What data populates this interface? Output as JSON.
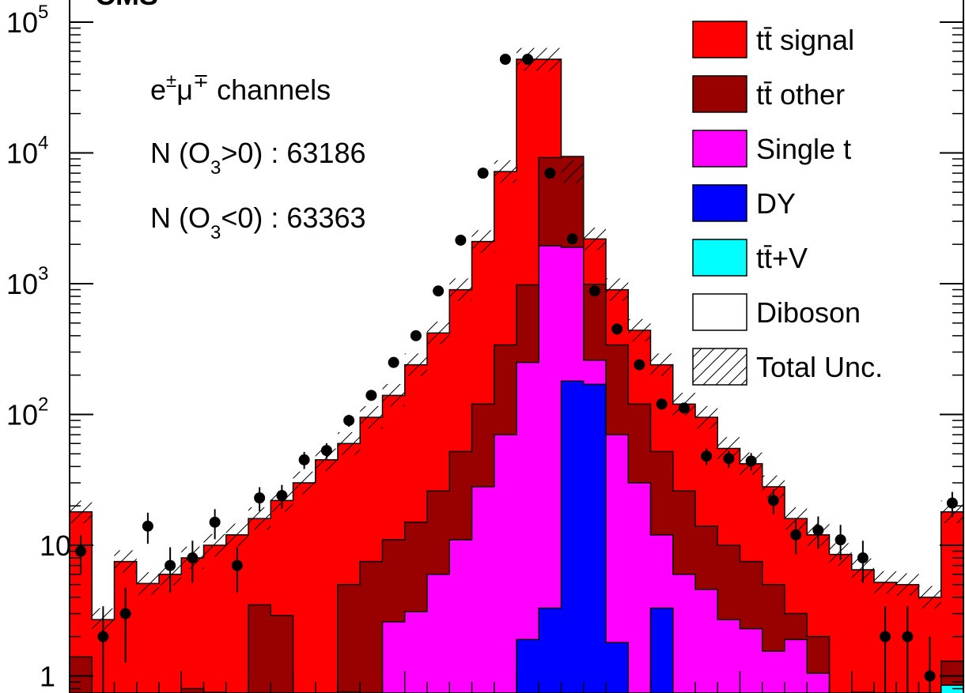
{
  "chart_data": {
    "type": "bar",
    "stacked": true,
    "yscale": "log",
    "ylim": [
      0.6,
      100000
    ],
    "n_bins": 40,
    "title": "CMS",
    "yticks": [
      {
        "value": 1,
        "base": "1",
        "exp": ""
      },
      {
        "value": 10,
        "base": "10",
        "exp": ""
      },
      {
        "value": 100,
        "base": "10",
        "exp": "2"
      },
      {
        "value": 1000,
        "base": "10",
        "exp": "3"
      },
      {
        "value": 10000,
        "base": "10",
        "exp": "4"
      },
      {
        "value": 100000,
        "base": "10",
        "exp": "5"
      }
    ],
    "annotations": {
      "channel": {
        "main": "e",
        "sup1": "±",
        "mid": "μ",
        "sup2": "∓",
        "tail": " channels"
      },
      "npos": {
        "prefix": "N (O",
        "sub": "3",
        "suffix": ">0) : 63186"
      },
      "nneg": {
        "prefix": "N (O",
        "sub": "3",
        "suffix": "<0) : 63363"
      }
    },
    "legend": {
      "position": "top-right",
      "entries": [
        {
          "label": "tt̄ signal",
          "color": "#ff0000",
          "hatch": false
        },
        {
          "label": "tt̄ other",
          "color": "#990000",
          "hatch": false
        },
        {
          "label": "Single t",
          "color": "#ff00ff",
          "hatch": false
        },
        {
          "label": "DY",
          "color": "#0000ff",
          "hatch": false
        },
        {
          "label": "tt̄+V",
          "color": "#00ffff",
          "hatch": false
        },
        {
          "label": "Diboson",
          "color": "#ffffff",
          "hatch": false
        },
        {
          "label": "Total Unc.",
          "color": "#ffffff",
          "hatch": true
        }
      ]
    },
    "series": [
      {
        "name": "tt̄ signal",
        "color": "#ff0000",
        "cumulative_values": [
          18,
          2.7,
          7.5,
          5.1,
          6,
          8,
          10,
          12,
          16,
          22,
          30,
          45,
          60,
          95,
          140,
          240,
          420,
          900,
          2100,
          7200,
          52000,
          52000,
          7200,
          2200,
          900,
          440,
          240,
          120,
          95,
          55,
          42,
          28,
          16,
          12,
          8.5,
          6.5,
          5.2,
          5,
          4,
          18
        ]
      },
      {
        "name": "tt̄ other",
        "color": "#990000",
        "cumulative_values": [
          1.4,
          0.55,
          0.55,
          0.55,
          0.6,
          0.8,
          0.75,
          0.6,
          3.5,
          2.9,
          0.6,
          0.6,
          5,
          7.5,
          11,
          15,
          26,
          52,
          120,
          340,
          980,
          9200,
          9400,
          990,
          340,
          120,
          52,
          26,
          14,
          10,
          7.5,
          5,
          3,
          2,
          0.55,
          0.75,
          0.7,
          0.55,
          0.55,
          1.3
        ]
      },
      {
        "name": "Single t",
        "color": "#ff00ff",
        "cumulative_values": [
          0,
          0,
          0,
          0,
          0,
          0,
          0,
          0,
          0,
          0,
          0,
          0,
          0,
          0,
          2.6,
          3.1,
          6,
          11,
          28,
          70,
          250,
          1950,
          1900,
          260,
          70,
          30,
          12,
          6,
          4.6,
          2.7,
          2.3,
          1.55,
          1.9,
          1.05,
          0.7,
          0,
          0,
          0,
          0,
          0
        ]
      },
      {
        "name": "DY",
        "color": "#0000ff",
        "cumulative_values": [
          0,
          0,
          0,
          0,
          0,
          0,
          0,
          0,
          0,
          0,
          0,
          0,
          0,
          0,
          0,
          0,
          0,
          0,
          0,
          0,
          1.9,
          3.3,
          180,
          170,
          1.8,
          0,
          3.3,
          0,
          0,
          0,
          0,
          0,
          0,
          0,
          0,
          0,
          0,
          0,
          0,
          0
        ]
      },
      {
        "name": "tt̄+V",
        "color": "#00ffff",
        "cumulative_values": [
          0,
          0,
          0,
          0,
          0,
          0,
          0,
          0,
          0,
          0,
          0,
          0,
          0.75,
          0,
          0,
          0.7,
          0,
          0,
          0,
          0,
          0,
          0,
          0,
          0,
          0,
          0,
          0,
          0,
          0,
          0,
          0,
          0,
          0,
          0,
          0,
          0,
          0,
          0,
          0,
          0.85
        ]
      }
    ],
    "total_mc": [
      18,
      2.7,
      7.5,
      5.1,
      6,
      8,
      10,
      12,
      16,
      22,
      30,
      45,
      60,
      95,
      140,
      240,
      420,
      900,
      2100,
      7200,
      52000,
      52000,
      7200,
      2200,
      900,
      440,
      240,
      120,
      95,
      55,
      42,
      28,
      16,
      12,
      8.5,
      6.5,
      5.2,
      5,
      4,
      18
    ],
    "data_points": [
      {
        "bin": 0,
        "y": 9
      },
      {
        "bin": 1,
        "y": 2
      },
      {
        "bin": 2,
        "y": 3
      },
      {
        "bin": 3,
        "y": 14
      },
      {
        "bin": 4,
        "y": 7
      },
      {
        "bin": 5,
        "y": 8
      },
      {
        "bin": 6,
        "y": 15
      },
      {
        "bin": 7,
        "y": 7
      },
      {
        "bin": 8,
        "y": 23
      },
      {
        "bin": 9,
        "y": 24
      },
      {
        "bin": 10,
        "y": 45
      },
      {
        "bin": 11,
        "y": 53
      },
      {
        "bin": 12,
        "y": 90
      },
      {
        "bin": 13,
        "y": 140
      },
      {
        "bin": 14,
        "y": 250
      },
      {
        "bin": 15,
        "y": 400
      },
      {
        "bin": 16,
        "y": 880
      },
      {
        "bin": 17,
        "y": 2150
      },
      {
        "bin": 18,
        "y": 7000
      },
      {
        "bin": 19,
        "y": 52000
      },
      {
        "bin": 20,
        "y": 52000
      },
      {
        "bin": 21,
        "y": 7000
      },
      {
        "bin": 22,
        "y": 2200
      },
      {
        "bin": 23,
        "y": 880
      },
      {
        "bin": 24,
        "y": 450
      },
      {
        "bin": 25,
        "y": 240
      },
      {
        "bin": 26,
        "y": 120
      },
      {
        "bin": 27,
        "y": 112
      },
      {
        "bin": 28,
        "y": 48
      },
      {
        "bin": 29,
        "y": 46
      },
      {
        "bin": 30,
        "y": 44
      },
      {
        "bin": 31,
        "y": 22
      },
      {
        "bin": 32,
        "y": 12
      },
      {
        "bin": 33,
        "y": 13
      },
      {
        "bin": 34,
        "y": 11
      },
      {
        "bin": 35,
        "y": 8
      },
      {
        "bin": 36,
        "y": 2
      },
      {
        "bin": 37,
        "y": 2
      },
      {
        "bin": 38,
        "y": 1
      },
      {
        "bin": 39,
        "y": 21
      }
    ]
  }
}
